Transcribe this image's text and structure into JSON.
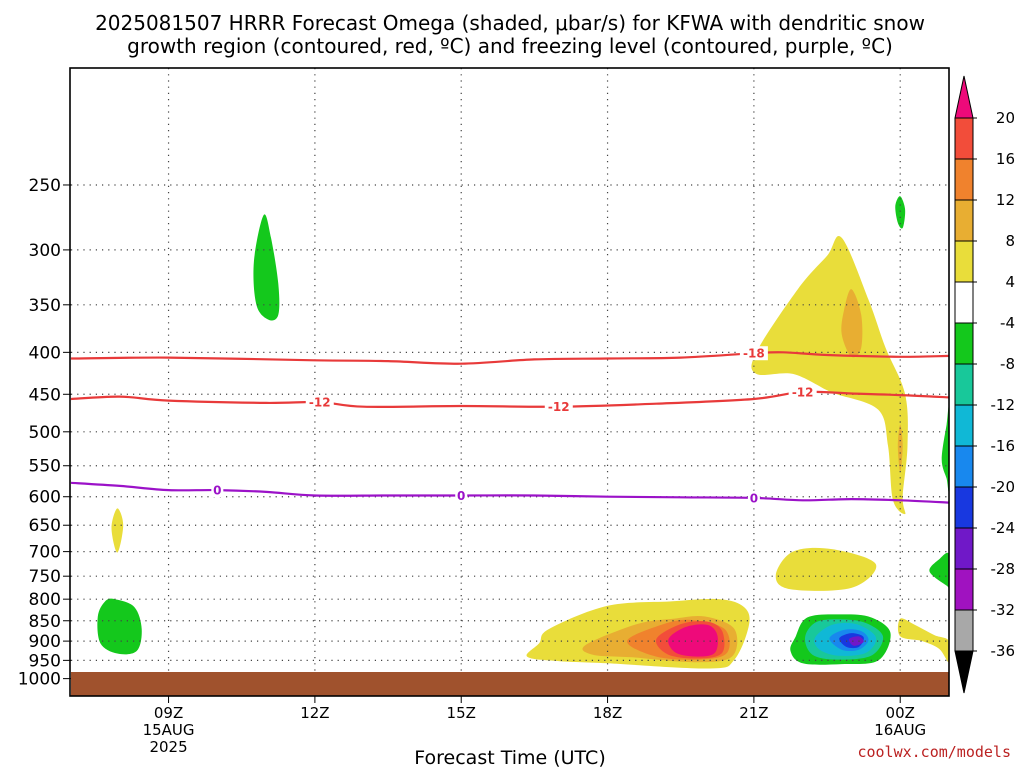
{
  "chart_data": {
    "type": "heatmap",
    "title": [
      "2025081507 HRRR Forecast Omega (shaded, μbar/s) for KFWA with dendritic snow",
      "growth region (contoured, red, ºC) and freezing level (contoured, purple, ºC)"
    ],
    "xlabel": "Forecast Time (UTC)",
    "ylabel": "",
    "credit": "coolwx.com/models",
    "x_range_hours": [
      7,
      25
    ],
    "y_log_scale": true,
    "y_range_hPa": [
      180,
      1050
    ],
    "y_ticks": [
      250,
      300,
      350,
      400,
      450,
      500,
      550,
      600,
      650,
      700,
      750,
      800,
      850,
      900,
      950,
      1000
    ],
    "x_ticks": [
      {
        "hour": 9,
        "lines": [
          "09Z",
          "15AUG",
          "2025"
        ]
      },
      {
        "hour": 12,
        "lines": [
          "12Z"
        ]
      },
      {
        "hour": 15,
        "lines": [
          "15Z"
        ]
      },
      {
        "hour": 18,
        "lines": [
          "18Z"
        ]
      },
      {
        "hour": 21,
        "lines": [
          "21Z"
        ]
      },
      {
        "hour": 24,
        "lines": [
          "00Z",
          "16AUG"
        ]
      }
    ],
    "grid": true,
    "colorbar": {
      "labels": [
        "20",
        "16",
        "12",
        "8",
        "4",
        "-4",
        "-8",
        "-12",
        "-16",
        "-20",
        "-24",
        "-28",
        "-32",
        "-36"
      ],
      "colors": [
        "#ee0a7a",
        "#f24d3a",
        "#f0822d",
        "#e8ae32",
        "#e9dd3a",
        "#ffffff",
        "#14c81c",
        "#18c89a",
        "#10b8d6",
        "#1888ee",
        "#1838e0",
        "#7018c8",
        "#a012c0",
        "#a8a8a8",
        "#000000"
      ]
    },
    "omega_regions": [
      {
        "value": -6,
        "color": "#14c81c",
        "points": [
          [
            10.95,
            272
          ],
          [
            11.1,
            290
          ],
          [
            11.25,
            330
          ],
          [
            11.25,
            360
          ],
          [
            11.05,
            365
          ],
          [
            10.8,
            350
          ],
          [
            10.75,
            310
          ]
        ]
      },
      {
        "value": -6,
        "color": "#14c81c",
        "points": [
          [
            24.0,
            258
          ],
          [
            24.1,
            268
          ],
          [
            24.05,
            282
          ],
          [
            23.95,
            278
          ],
          [
            23.9,
            265
          ]
        ]
      },
      {
        "value": -6,
        "color": "#14c81c",
        "points": [
          [
            7.9,
            800
          ],
          [
            8.3,
            818
          ],
          [
            8.45,
            870
          ],
          [
            8.35,
            925
          ],
          [
            7.95,
            932
          ],
          [
            7.6,
            905
          ],
          [
            7.55,
            840
          ],
          [
            7.7,
            805
          ]
        ]
      },
      {
        "value": -6,
        "color": "#14c81c",
        "points": [
          [
            25.0,
            470
          ],
          [
            24.95,
            490
          ],
          [
            24.85,
            540
          ],
          [
            24.95,
            570
          ],
          [
            25.0,
            585
          ]
        ]
      },
      {
        "value": -6,
        "color": "#14c81c",
        "points": [
          [
            25.0,
            705
          ],
          [
            24.8,
            715
          ],
          [
            24.6,
            740
          ],
          [
            24.95,
            770
          ],
          [
            25.0,
            770
          ]
        ]
      },
      {
        "value": 6,
        "color": "#e9dd3a",
        "points": [
          [
            7.95,
            620
          ],
          [
            8.07,
            650
          ],
          [
            7.95,
            702
          ],
          [
            7.83,
            655
          ]
        ]
      },
      {
        "value": 6,
        "color": "#e9dd3a",
        "points": [
          [
            22.8,
            290
          ],
          [
            23.35,
            345
          ],
          [
            23.7,
            395
          ],
          [
            24.1,
            450
          ],
          [
            24.15,
            520
          ],
          [
            24.05,
            600
          ],
          [
            24.1,
            630
          ],
          [
            23.85,
            605
          ],
          [
            23.75,
            520
          ],
          [
            23.55,
            470
          ],
          [
            22.7,
            450
          ],
          [
            22.5,
            445
          ],
          [
            21.8,
            425
          ],
          [
            21.05,
            425
          ],
          [
            21.05,
            400
          ],
          [
            21.9,
            335
          ],
          [
            22.5,
            305
          ]
        ]
      },
      {
        "value": 10,
        "color": "#e8ae32",
        "points": [
          [
            23.0,
            335
          ],
          [
            23.2,
            360
          ],
          [
            23.2,
            395
          ],
          [
            23.0,
            405
          ],
          [
            22.8,
            380
          ],
          [
            22.85,
            355
          ]
        ]
      },
      {
        "value": 10,
        "color": "#e8ae32",
        "points": [
          [
            24.0,
            490
          ],
          [
            24.05,
            520
          ],
          [
            24.0,
            560
          ],
          [
            23.95,
            520
          ]
        ]
      },
      {
        "value": 6,
        "color": "#e9dd3a",
        "points": [
          [
            21.8,
            700
          ],
          [
            22.6,
            695
          ],
          [
            23.5,
            725
          ],
          [
            23.0,
            775
          ],
          [
            21.75,
            778
          ],
          [
            21.45,
            748
          ]
        ]
      },
      {
        "value": 6,
        "color": "#e9dd3a",
        "points": [
          [
            24.0,
            845
          ],
          [
            24.3,
            860
          ],
          [
            24.7,
            885
          ],
          [
            25.0,
            900
          ],
          [
            25.0,
            955
          ],
          [
            24.8,
            920
          ],
          [
            24.45,
            900
          ],
          [
            24.0,
            888
          ]
        ]
      },
      {
        "value": 6,
        "color": "#e9dd3a",
        "points": [
          [
            16.8,
            870
          ],
          [
            18.0,
            815
          ],
          [
            19.3,
            805
          ],
          [
            20.3,
            800
          ],
          [
            20.8,
            818
          ],
          [
            20.9,
            860
          ],
          [
            20.6,
            948
          ],
          [
            20.1,
            972
          ],
          [
            18.0,
            958
          ],
          [
            17.0,
            952
          ],
          [
            16.35,
            940
          ],
          [
            16.6,
            905
          ]
        ]
      },
      {
        "value": 10,
        "color": "#e8ae32",
        "points": [
          [
            17.55,
            910
          ],
          [
            18.6,
            858
          ],
          [
            19.35,
            845
          ],
          [
            20.0,
            840
          ],
          [
            20.6,
            870
          ],
          [
            20.55,
            940
          ],
          [
            19.8,
            955
          ],
          [
            18.5,
            942
          ],
          [
            17.7,
            935
          ]
        ]
      },
      {
        "value": 14,
        "color": "#f0822d",
        "points": [
          [
            18.4,
            900
          ],
          [
            19.1,
            860
          ],
          [
            19.7,
            848
          ],
          [
            20.4,
            870
          ],
          [
            20.45,
            930
          ],
          [
            19.9,
            948
          ],
          [
            19.0,
            940
          ]
        ]
      },
      {
        "value": 18,
        "color": "#f24d3a",
        "points": [
          [
            19.0,
            895
          ],
          [
            19.5,
            858
          ],
          [
            20.05,
            852
          ],
          [
            20.35,
            875
          ],
          [
            20.35,
            930
          ],
          [
            19.9,
            945
          ],
          [
            19.25,
            935
          ]
        ]
      },
      {
        "value": 22,
        "color": "#ee0a7a",
        "points": [
          [
            19.25,
            895
          ],
          [
            19.6,
            865
          ],
          [
            20.05,
            860
          ],
          [
            20.25,
            885
          ],
          [
            20.2,
            930
          ],
          [
            19.85,
            940
          ],
          [
            19.4,
            930
          ]
        ]
      },
      {
        "value": -6,
        "color": "#14c81c",
        "points": [
          [
            21.85,
            890
          ],
          [
            22.1,
            842
          ],
          [
            22.8,
            835
          ],
          [
            23.4,
            842
          ],
          [
            23.8,
            880
          ],
          [
            23.55,
            950
          ],
          [
            22.8,
            960
          ],
          [
            22.0,
            958
          ],
          [
            21.75,
            925
          ]
        ]
      },
      {
        "value": -10,
        "color": "#18c89a",
        "points": [
          [
            22.05,
            890
          ],
          [
            22.3,
            852
          ],
          [
            22.9,
            847
          ],
          [
            23.35,
            858
          ],
          [
            23.65,
            890
          ],
          [
            23.4,
            938
          ],
          [
            22.7,
            948
          ],
          [
            22.2,
            935
          ]
        ]
      },
      {
        "value": -14,
        "color": "#10b8d6",
        "points": [
          [
            22.25,
            892
          ],
          [
            22.6,
            860
          ],
          [
            23.1,
            858
          ],
          [
            23.5,
            890
          ],
          [
            23.3,
            930
          ],
          [
            22.75,
            938
          ],
          [
            22.35,
            922
          ]
        ]
      },
      {
        "value": -18,
        "color": "#1888ee",
        "points": [
          [
            22.55,
            893
          ],
          [
            22.85,
            872
          ],
          [
            23.2,
            875
          ],
          [
            23.35,
            898
          ],
          [
            23.15,
            922
          ],
          [
            22.8,
            922
          ]
        ]
      },
      {
        "value": -22,
        "color": "#1838e0",
        "points": [
          [
            22.75,
            893
          ],
          [
            23.0,
            880
          ],
          [
            23.25,
            890
          ],
          [
            23.15,
            915
          ],
          [
            22.9,
            915
          ]
        ]
      },
      {
        "value": -26,
        "color": "#7018c8",
        "points": [
          [
            22.95,
            895
          ],
          [
            23.15,
            888
          ],
          [
            23.25,
            902
          ],
          [
            23.05,
            912
          ]
        ]
      }
    ],
    "temperature_contours": [
      {
        "label": "-18",
        "color": "#e83a3a",
        "label_hours": [
          21.0
        ],
        "points": [
          [
            7,
            407
          ],
          [
            9,
            406
          ],
          [
            12,
            409
          ],
          [
            13.5,
            410
          ],
          [
            15,
            413
          ],
          [
            16.5,
            408
          ],
          [
            18,
            407
          ],
          [
            19.5,
            406
          ],
          [
            21,
            401
          ],
          [
            21.6,
            400
          ],
          [
            22.5,
            403
          ],
          [
            24,
            405
          ],
          [
            25,
            404
          ]
        ]
      },
      {
        "label": "-12",
        "color": "#e83a3a",
        "label_hours": [
          12.1,
          17.0,
          22.0
        ],
        "points": [
          [
            7,
            456
          ],
          [
            8,
            453
          ],
          [
            9,
            458
          ],
          [
            11,
            461
          ],
          [
            12.1,
            460
          ],
          [
            13,
            466
          ],
          [
            15,
            465
          ],
          [
            17,
            466
          ],
          [
            19,
            462
          ],
          [
            21,
            456
          ],
          [
            22,
            447
          ],
          [
            23,
            449
          ],
          [
            24,
            451
          ],
          [
            25,
            454
          ]
        ]
      },
      {
        "label": "0",
        "color": "#9b12c8",
        "label_hours": [
          10.0,
          15.0,
          21.0
        ],
        "points": [
          [
            7,
            577
          ],
          [
            8,
            582
          ],
          [
            9,
            589
          ],
          [
            10,
            589
          ],
          [
            11,
            592
          ],
          [
            12,
            598
          ],
          [
            13.5,
            598
          ],
          [
            15,
            598
          ],
          [
            16.5,
            598
          ],
          [
            18,
            600
          ],
          [
            19.5,
            601
          ],
          [
            21,
            602
          ],
          [
            22,
            606
          ],
          [
            23,
            604
          ],
          [
            24,
            606
          ],
          [
            25,
            610
          ]
        ]
      }
    ]
  }
}
